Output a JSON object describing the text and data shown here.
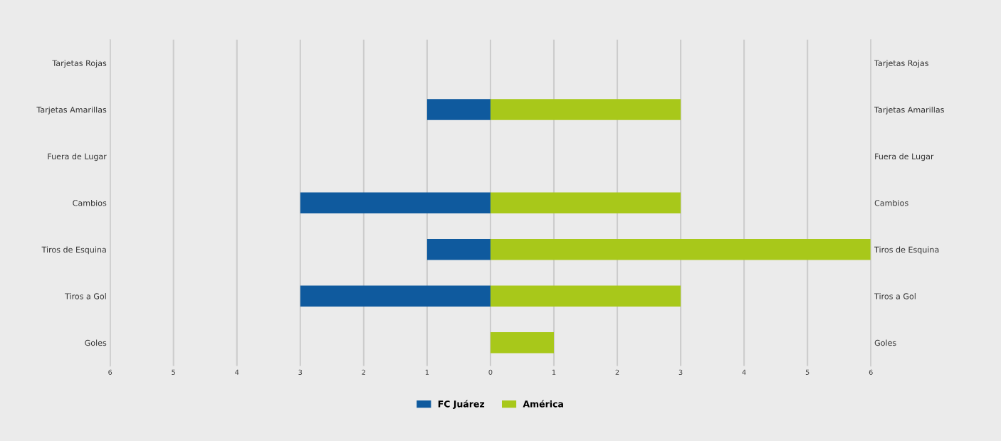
{
  "chart_data": {
    "type": "bar",
    "orientation": "horizontal",
    "stacked": true,
    "categories": [
      "Tarjetas Rojas",
      "Tarjetas Amarillas",
      "Fuera de Lugar",
      "Cambios",
      "Tiros de Esquina",
      "Tiros a Gol",
      "Goles"
    ],
    "series": [
      {
        "name": "FC Juárez",
        "color": "#0f5a9e",
        "values": [
          0,
          -1,
          0,
          -3,
          -1,
          -3,
          0
        ]
      },
      {
        "name": "América",
        "color": "#a8c81a",
        "values": [
          0,
          3,
          0,
          3,
          6,
          3,
          1
        ]
      }
    ],
    "xlim": [
      -6,
      6
    ],
    "xticks": [
      {
        "value": -6,
        "label": "6"
      },
      {
        "value": -5,
        "label": "5"
      },
      {
        "value": -4,
        "label": "4"
      },
      {
        "value": -3,
        "label": "3"
      },
      {
        "value": -2,
        "label": "2"
      },
      {
        "value": -1,
        "label": "1"
      },
      0,
      1,
      2,
      3,
      4,
      5,
      6
    ],
    "grid": "x",
    "legend": "bottom"
  }
}
